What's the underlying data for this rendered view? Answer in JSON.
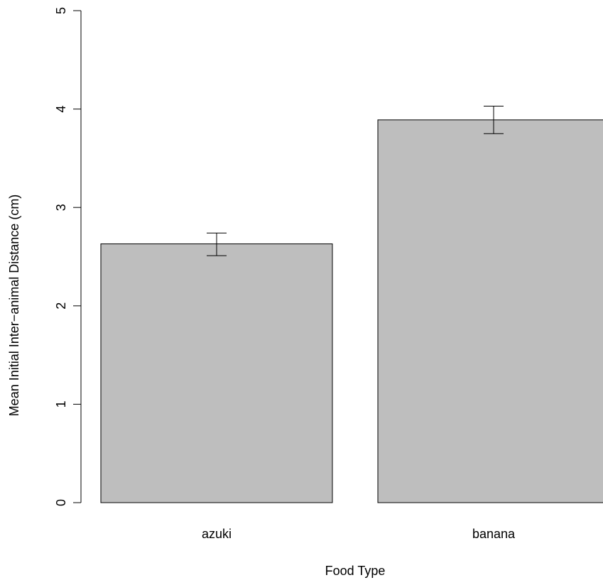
{
  "chart_data": {
    "type": "bar",
    "title": "",
    "xlabel": "Food Type",
    "ylabel": "Mean Initial Inter−animal Distance (cm)",
    "categories": [
      "azuki",
      "banana"
    ],
    "values": [
      2.63,
      3.89
    ],
    "error_low": [
      2.51,
      3.75
    ],
    "error_high": [
      2.74,
      4.03
    ],
    "ylim": [
      0,
      5
    ],
    "yticks": [
      "0",
      "1",
      "2",
      "3",
      "4",
      "5"
    ],
    "grid": false,
    "legend": "none",
    "bar_color": "#bebebe",
    "edge_color": "#000000"
  }
}
